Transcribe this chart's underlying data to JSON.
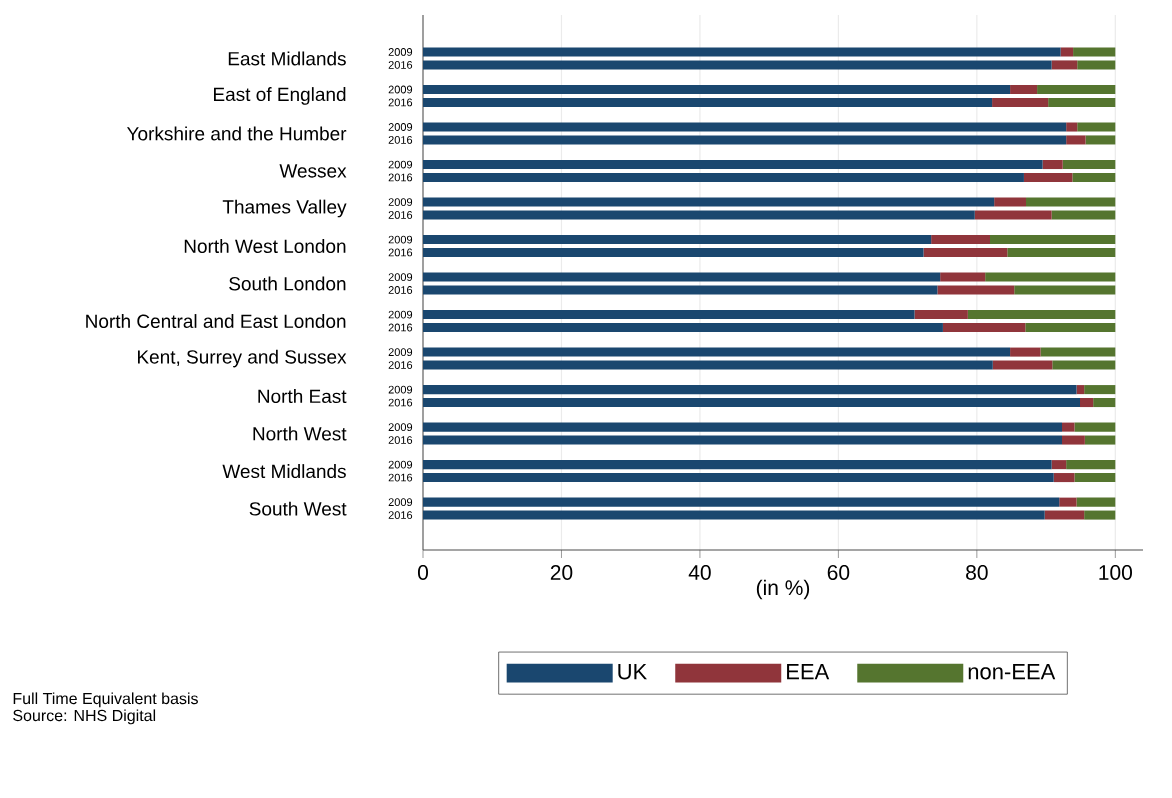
{
  "chart_data": {
    "type": "bar",
    "orientation": "horizontal",
    "stacked": true,
    "xlabel": "(in %)",
    "categories": [
      "2009",
      "2016",
      "2009",
      "2016",
      "2009",
      "2016",
      "2009",
      "2016",
      "2009",
      "2016",
      "2009",
      "2016",
      "2009",
      "2016",
      "2009",
      "2016",
      "2009",
      "2016",
      "2009",
      "2016",
      "2009",
      "2016",
      "2009",
      "2016",
      "2009",
      "2016"
    ],
    "series": [
      {
        "name": "UK",
        "color": "#1a476f",
        "values": [
          92.1,
          90.8,
          84.8,
          82.2,
          92.9,
          92.9,
          89.5,
          86.8,
          82.5,
          79.7,
          73.4,
          72.3,
          74.7,
          74.3,
          71.0,
          75.1,
          84.8,
          82.3,
          94.4,
          94.9,
          92.3,
          92.3,
          90.8,
          91.1,
          91.9,
          89.8
        ]
      },
      {
        "name": "EEA",
        "color": "#90353b",
        "values": [
          1.8,
          3.7,
          3.9,
          8.1,
          1.6,
          2.8,
          2.9,
          7.0,
          4.6,
          11.1,
          8.5,
          12.1,
          6.5,
          11.1,
          7.7,
          11.9,
          4.4,
          8.6,
          1.1,
          1.9,
          1.8,
          3.3,
          2.1,
          3.0,
          2.5,
          5.7
        ]
      },
      {
        "name": "non-EEA",
        "color": "#55752f",
        "values": [
          6.1,
          5.5,
          11.3,
          9.7,
          5.5,
          4.3,
          7.6,
          6.2,
          12.9,
          9.2,
          18.1,
          15.6,
          18.8,
          14.6,
          21.3,
          13.0,
          10.8,
          9.1,
          4.5,
          3.2,
          5.9,
          4.4,
          7.1,
          5.9,
          5.6,
          4.5
        ]
      }
    ],
    "xlim": [
      0,
      104
    ],
    "xticks": [
      0,
      20,
      40,
      60,
      80,
      100
    ],
    "grid": "x",
    "legend": "bottom",
    "annotations": [
      "East Midlands",
      "East of England",
      "Yorkshire and the Humber",
      "Wessex",
      "Thames Valley",
      "North West London",
      "South London",
      "North Central and East London",
      "Kent, Surrey and Sussex",
      "North East",
      "North West",
      "West Midlands",
      "South West",
      "Full Time Equivalent basis",
      "Source: NHS Digital"
    ]
  }
}
